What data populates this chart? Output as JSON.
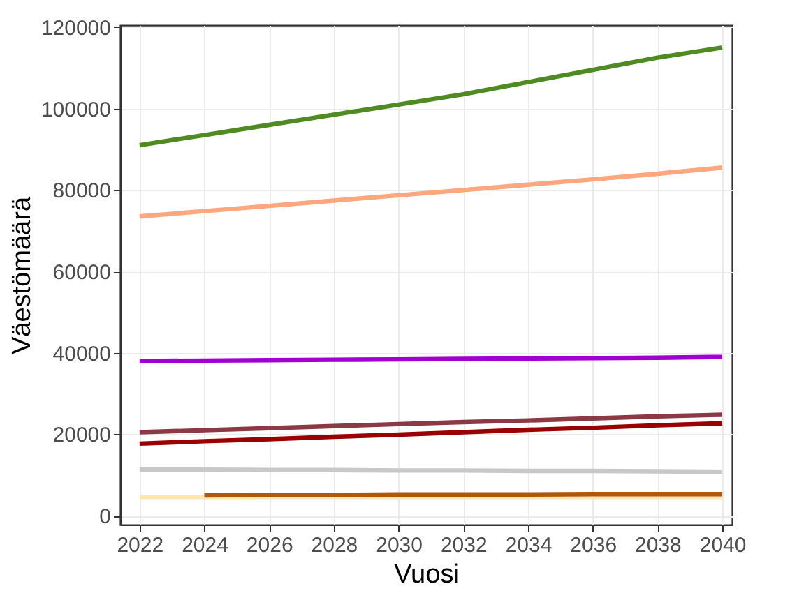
{
  "chart_data": {
    "type": "line",
    "xlabel": "Vuosi",
    "ylabel": "Väestömäärä",
    "x": [
      2022,
      2024,
      2026,
      2028,
      2030,
      2032,
      2034,
      2036,
      2038,
      2040
    ],
    "xlim": [
      2021.4,
      2040.3
    ],
    "xticks": [
      2022,
      2024,
      2026,
      2028,
      2030,
      2032,
      2034,
      2036,
      2038,
      2040
    ],
    "ylim": [
      -2200,
      120500
    ],
    "yticks": [
      0,
      20000,
      40000,
      60000,
      80000,
      100000,
      120000
    ],
    "grid": true,
    "marker": "none",
    "line_style": "solid",
    "series": [
      {
        "color": "#4f8a23",
        "values": [
          91000,
          93500,
          96000,
          98500,
          101000,
          103500,
          106500,
          109500,
          112500,
          115000
        ]
      },
      {
        "color": "#fca77e",
        "values": [
          73500,
          74800,
          76100,
          77400,
          78700,
          80000,
          81300,
          82600,
          84000,
          85500
        ]
      },
      {
        "color": "#a000d0",
        "values": [
          38000,
          38100,
          38200,
          38300,
          38400,
          38500,
          38600,
          38700,
          38800,
          39000
        ]
      },
      {
        "color": "#8b3a45",
        "values": [
          20500,
          21000,
          21500,
          22000,
          22500,
          23000,
          23400,
          23900,
          24400,
          24800
        ]
      },
      {
        "color": "#9b0000",
        "values": [
          17700,
          18300,
          18800,
          19400,
          19900,
          20500,
          21100,
          21600,
          22200,
          22700
        ]
      },
      {
        "color": "#c8c8c8",
        "values": [
          11300,
          11300,
          11200,
          11200,
          11100,
          11100,
          11000,
          11000,
          10900,
          10800
        ]
      },
      {
        "color": "#fde7b0",
        "values": [
          4600,
          4600,
          4600,
          4600,
          4600,
          4600,
          4600,
          4600,
          4600,
          4600
        ]
      },
      {
        "color": "#b0580a",
        "values": [
          null,
          5000,
          5100,
          5100,
          5200,
          5200,
          5200,
          5300,
          5300,
          5300
        ]
      }
    ]
  }
}
